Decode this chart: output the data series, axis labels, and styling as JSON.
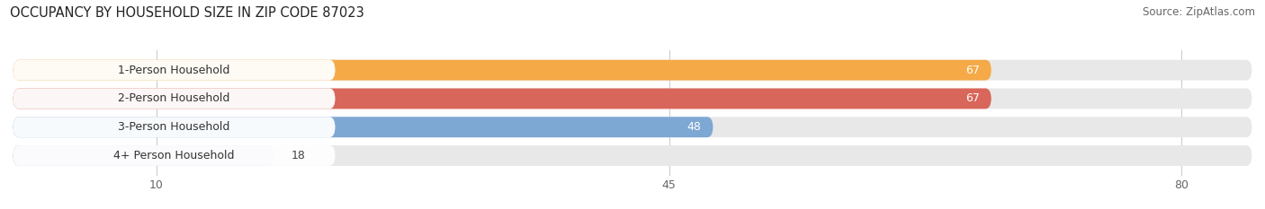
{
  "title": "OCCUPANCY BY HOUSEHOLD SIZE IN ZIP CODE 87023",
  "source": "Source: ZipAtlas.com",
  "categories": [
    "1-Person Household",
    "2-Person Household",
    "3-Person Household",
    "4+ Person Household"
  ],
  "values": [
    67,
    67,
    48,
    18
  ],
  "bar_colors": [
    "#F5A947",
    "#D9665A",
    "#7EA8D4",
    "#C4A8C8"
  ],
  "xlim": [
    0,
    85
  ],
  "xticks": [
    10,
    45,
    80
  ],
  "background_color": "#FFFFFF",
  "bar_bg_color": "#E8E8E8",
  "title_fontsize": 10.5,
  "source_fontsize": 8.5,
  "tick_fontsize": 9,
  "label_fontsize": 9,
  "value_fontsize": 9,
  "bar_height": 0.72,
  "bar_gap": 0.18
}
